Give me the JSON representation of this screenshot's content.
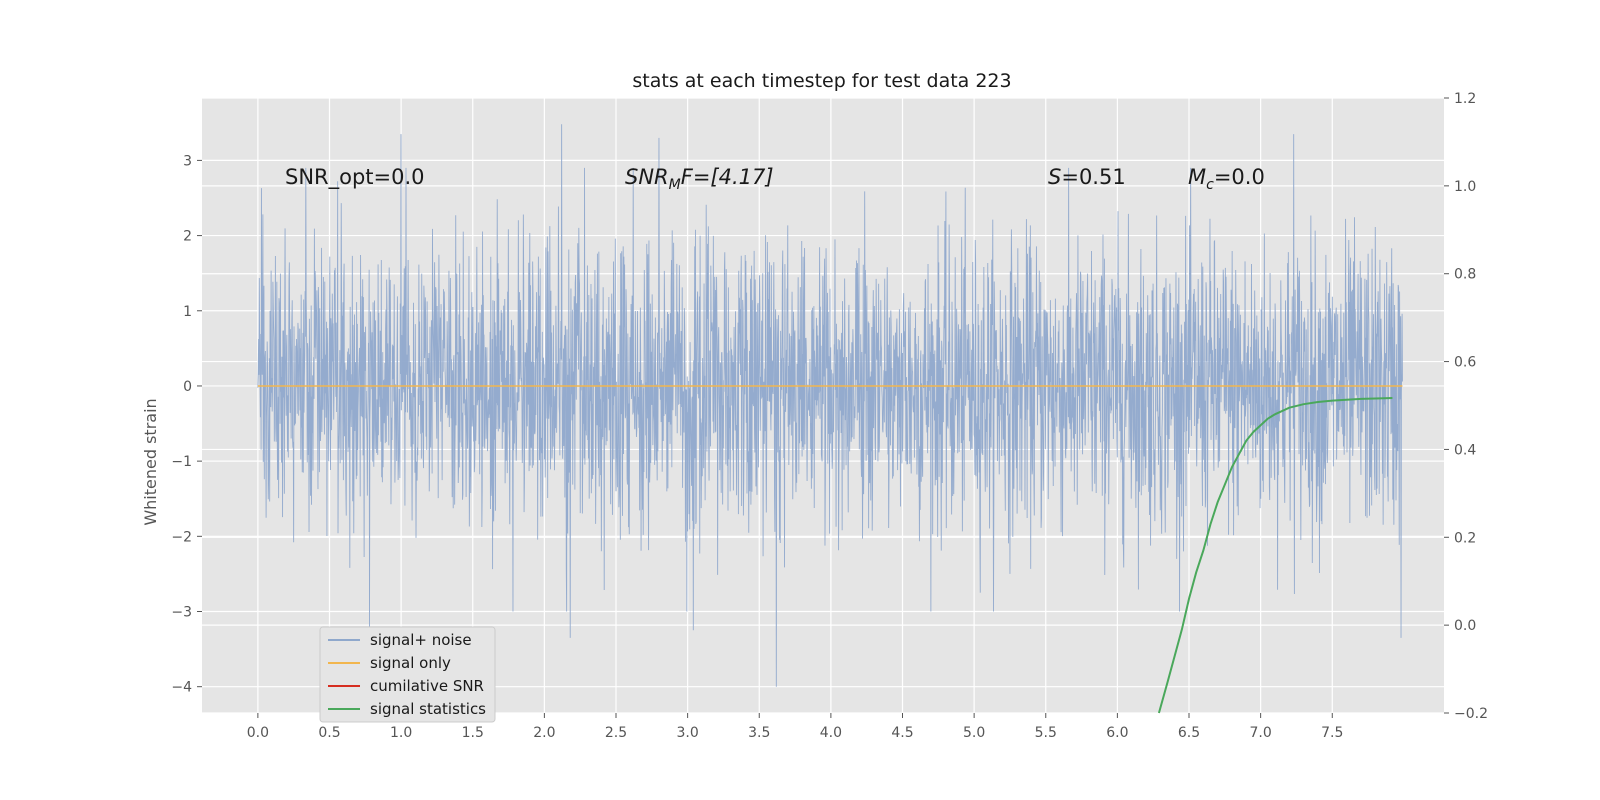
{
  "chart_data": {
    "type": "line",
    "title": "stats at each timestep for test data 223",
    "ylabel": "Whitened strain",
    "xlabel": "",
    "xlim": [
      -0.39,
      8.28
    ],
    "ylim": [
      -4.35,
      3.83
    ],
    "y2lim": [
      -0.2,
      1.2
    ],
    "grid": true,
    "legend_position": "lower-left",
    "x_ticks": [
      "0.0",
      "0.5",
      "1.0",
      "1.5",
      "2.0",
      "2.5",
      "3.0",
      "3.5",
      "4.0",
      "4.5",
      "5.0",
      "5.5",
      "6.0",
      "6.5",
      "7.0",
      "7.5"
    ],
    "y_ticks": [
      "3",
      "2",
      "1",
      "0",
      "−1",
      "−2",
      "−3",
      "−4"
    ],
    "y2_ticks": [
      "1.2",
      "1.0",
      "0.8",
      "0.6",
      "0.4",
      "0.2",
      "0.0",
      "−0.2"
    ],
    "annotations": {
      "snr_opt": "SNR_opt=0.0",
      "snr_mf_main": "SNR",
      "snr_mf_sub": "M",
      "snr_mf_rest": "F=[4.17]",
      "s_main": "S",
      "s_rest": "=0.51",
      "mc_main": "M",
      "mc_sub": "c",
      "mc_rest": "=0.0"
    },
    "series": [
      {
        "name": "signal+ noise",
        "color": "#8fa8cc",
        "x_range": [
          0.0,
          7.99
        ],
        "mean": 0.0,
        "approx_range": [
          -4.0,
          3.5
        ],
        "notable_peaks": [
          [
            1.0,
            3.35
          ],
          [
            2.12,
            3.48
          ],
          [
            2.8,
            3.3
          ],
          [
            7.23,
            3.35
          ],
          [
            3.62,
            -4.0
          ],
          [
            0.78,
            -3.2
          ],
          [
            1.0,
            -3.1
          ],
          [
            2.18,
            -3.35
          ],
          [
            3.04,
            -3.25
          ],
          [
            7.98,
            -3.35
          ],
          [
            1.78,
            -3.0
          ]
        ]
      },
      {
        "name": "signal only",
        "color": "#f2b64e",
        "x": [
          0.0,
          7.99
        ],
        "y": [
          0.0,
          0.0
        ]
      },
      {
        "name": "cumilative SNR",
        "color": "#d62d20",
        "x": [],
        "y": []
      },
      {
        "name": "signal statistics",
        "axis": "right",
        "color": "#4aa85b",
        "x": [
          6.29,
          6.35,
          6.4,
          6.45,
          6.5,
          6.55,
          6.6,
          6.65,
          6.7,
          6.75,
          6.8,
          6.85,
          6.9,
          6.95,
          7.0,
          7.05,
          7.1,
          7.2,
          7.3,
          7.4,
          7.5,
          7.6,
          7.7,
          7.8,
          7.92
        ],
        "y": [
          -0.2,
          -0.13,
          -0.07,
          -0.01,
          0.06,
          0.12,
          0.17,
          0.23,
          0.28,
          0.32,
          0.36,
          0.39,
          0.42,
          0.44,
          0.455,
          0.47,
          0.48,
          0.495,
          0.503,
          0.508,
          0.511,
          0.513,
          0.515,
          0.516,
          0.517
        ]
      }
    ]
  }
}
